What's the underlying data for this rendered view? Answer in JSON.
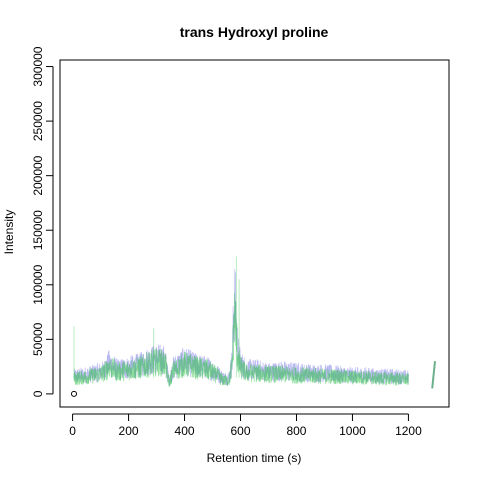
{
  "chart_data": {
    "type": "line",
    "title": "trans Hydroxyl proline",
    "xlabel": "Retention time (s)",
    "ylabel": "Intensity",
    "xlim": [
      -45,
      1345
    ],
    "ylim": [
      -12000,
      306000
    ],
    "x_ticks": [
      0,
      200,
      400,
      600,
      800,
      1000,
      1200
    ],
    "x_tick_labels": [
      "0",
      "200",
      "400",
      "600",
      "800",
      "1000",
      "1200"
    ],
    "y_ticks": [
      0,
      50000,
      100000,
      150000,
      200000,
      250000,
      300000
    ],
    "y_tick_labels": [
      "0",
      "50000",
      "100000",
      "150000",
      "200000",
      "250000",
      "300000"
    ],
    "grid": false,
    "legend": "none",
    "series": [
      {
        "color": "#3a3ad8",
        "opacity": 0.35,
        "x": [
          5,
          40,
          80,
          110,
          130,
          160,
          200,
          240,
          270,
          300,
          330,
          345,
          360,
          400,
          440,
          480,
          510,
          535,
          545,
          560,
          570,
          575,
          580,
          585,
          590,
          600,
          620,
          660,
          700,
          750,
          800,
          850,
          900,
          950,
          1000,
          1050,
          1100,
          1150,
          1200
        ],
        "y": [
          16000,
          17000,
          19000,
          21000,
          28000,
          22000,
          24000,
          26000,
          30000,
          32000,
          31000,
          12000,
          24000,
          30000,
          26000,
          24000,
          20000,
          15000,
          14000,
          15000,
          30000,
          70000,
          85000,
          65000,
          40000,
          28000,
          22000,
          22000,
          20000,
          21000,
          20000,
          19000,
          19000,
          18000,
          17000,
          17000,
          16000,
          16000,
          15000
        ]
      },
      {
        "color": "#1fbf3a",
        "opacity": 0.5,
        "x": [
          5,
          40,
          80,
          110,
          130,
          160,
          200,
          240,
          270,
          300,
          330,
          345,
          360,
          400,
          440,
          480,
          510,
          535,
          545,
          560,
          570,
          575,
          580,
          585,
          590,
          600,
          620,
          660,
          700,
          750,
          800,
          850,
          900,
          950,
          1000,
          1050,
          1100,
          1150,
          1200
        ],
        "y": [
          14000,
          15000,
          17000,
          19000,
          25000,
          20000,
          22000,
          24000,
          27000,
          29000,
          28000,
          10000,
          21000,
          27000,
          24000,
          22000,
          18000,
          13000,
          12000,
          13000,
          26000,
          55000,
          75000,
          52000,
          32000,
          24000,
          19000,
          19000,
          18000,
          18000,
          17000,
          17000,
          16000,
          16000,
          15000,
          15000,
          14000,
          14000,
          13000
        ]
      }
    ],
    "peaks": [
      {
        "x": 5,
        "y": 62000
      },
      {
        "x": 585,
        "y": 126000
      },
      {
        "x": 595,
        "y": 105000
      },
      {
        "x": 290,
        "y": 60000
      }
    ],
    "tail_segment": {
      "x": [
        1285,
        1295
      ],
      "y": [
        5000,
        30000
      ]
    },
    "marker": {
      "x": 5,
      "y": 0
    }
  }
}
